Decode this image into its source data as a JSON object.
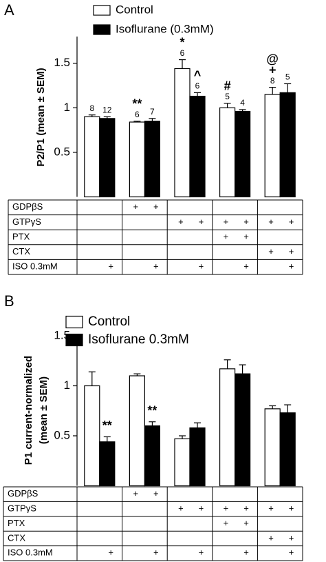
{
  "chart_data": [
    {
      "type": "bar",
      "panel": "A",
      "ylabel": [
        "P2/P1 (mean ± SEM)"
      ],
      "ylim": [
        0,
        1.8
      ],
      "yticks": [
        0.5,
        1,
        1.5
      ],
      "series": [
        {
          "name": "Control",
          "color": "#ffffff",
          "values": [
            0.9,
            0.84,
            1.44,
            1.0,
            1.15
          ],
          "errors": [
            0.02,
            0.01,
            0.1,
            0.05,
            0.08
          ],
          "n": [
            8,
            6,
            6,
            5,
            8
          ],
          "sig": [
            null,
            [
              "**"
            ],
            [
              "*"
            ],
            [
              "#"
            ],
            [
              "@",
              "+"
            ]
          ]
        },
        {
          "name": "Isoflurane (0.3mM)",
          "color": "#000000",
          "values": [
            0.88,
            0.85,
            1.13,
            0.96,
            1.17
          ],
          "errors": [
            0.02,
            0.03,
            0.04,
            0.02,
            0.1
          ],
          "n": [
            12,
            7,
            6,
            4,
            5
          ],
          "sig": [
            null,
            null,
            [
              "^"
            ],
            null,
            null
          ]
        }
      ],
      "table": {
        "rows": [
          {
            "label": "GDPβS",
            "cells": [
              null,
              null,
              "+",
              "+",
              null,
              null,
              null,
              null,
              null,
              null
            ]
          },
          {
            "label": "GTPγS",
            "cells": [
              null,
              null,
              null,
              null,
              "+",
              "+",
              "+",
              "+",
              "+",
              "+"
            ]
          },
          {
            "label": "PTX",
            "cells": [
              null,
              null,
              null,
              null,
              null,
              null,
              "+",
              "+",
              null,
              null
            ]
          },
          {
            "label": "CTX",
            "cells": [
              null,
              null,
              null,
              null,
              null,
              null,
              null,
              null,
              "+",
              "+"
            ]
          },
          {
            "label": "ISO 0.3mM",
            "cells": [
              null,
              "+",
              null,
              "+",
              null,
              "+",
              null,
              "+",
              null,
              "+"
            ]
          }
        ]
      }
    },
    {
      "type": "bar",
      "panel": "B",
      "ylabel": [
        "P1 current-normalized",
        "(mean ± SEM)"
      ],
      "ylim": [
        0,
        1.5
      ],
      "yticks": [
        0.5,
        1,
        1.5
      ],
      "series": [
        {
          "name": "Control",
          "color": "#ffffff",
          "values": [
            1.0,
            1.1,
            0.47,
            1.17,
            0.77
          ],
          "errors": [
            0.14,
            0.02,
            0.03,
            0.09,
            0.03
          ]
        },
        {
          "name": "Isoflurane 0.3mM",
          "color": "#000000",
          "values": [
            0.44,
            0.6,
            0.58,
            1.12,
            0.73
          ],
          "errors": [
            0.05,
            0.04,
            0.05,
            0.09,
            0.08
          ],
          "sig": [
            [
              "**"
            ],
            [
              "**"
            ],
            null,
            null,
            null
          ]
        }
      ],
      "table": {
        "rows": [
          {
            "label": "GDPβS",
            "cells": [
              null,
              null,
              "+",
              "+",
              null,
              null,
              null,
              null,
              null,
              null
            ]
          },
          {
            "label": "GTPγS",
            "cells": [
              null,
              null,
              null,
              null,
              "+",
              "+",
              "+",
              "+",
              "+",
              "+"
            ]
          },
          {
            "label": "PTX",
            "cells": [
              null,
              null,
              null,
              null,
              null,
              null,
              "+",
              "+",
              null,
              null
            ]
          },
          {
            "label": "CTX",
            "cells": [
              null,
              null,
              null,
              null,
              null,
              null,
              null,
              null,
              "+",
              "+"
            ]
          },
          {
            "label": "ISO 0.3mM",
            "cells": [
              null,
              "+",
              null,
              "+",
              null,
              "+",
              null,
              "+",
              null,
              "+"
            ]
          }
        ]
      }
    }
  ]
}
